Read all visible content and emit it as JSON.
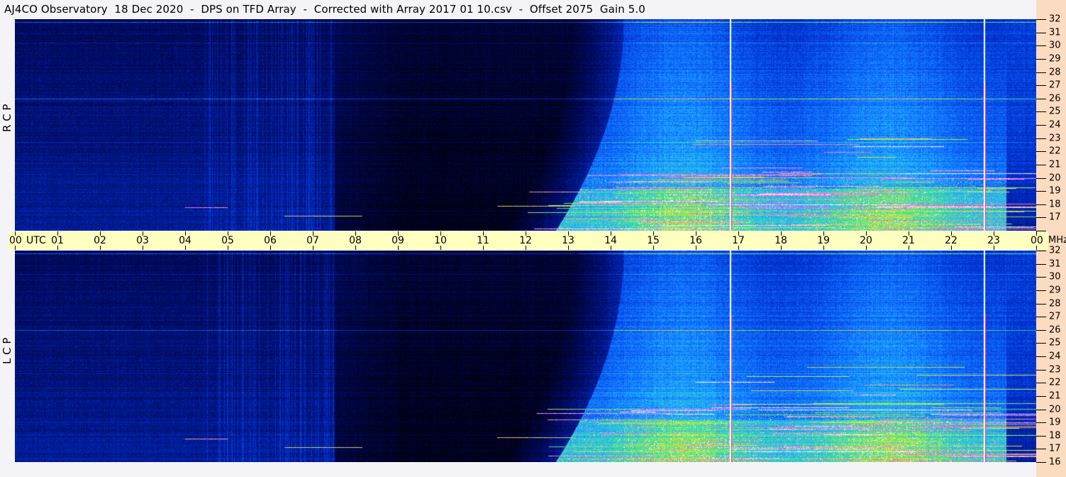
{
  "title": "AJ4CO Observatory  18 Dec 2020  -  DPS on TFD Array  -  Corrected with Array 2017 01 10.csv  -  Offset 2075  Gain 5.0",
  "colors": {
    "background": "#f4f4f8",
    "time_bar": "#ffffc0",
    "freq_strip": "#fcdcc0",
    "marker_line": "#ffffff",
    "marker_line_edge": "#ff2090"
  },
  "chart_data": {
    "type": "heatmap",
    "title": "AJ4CO Observatory  18 Dec 2020  -  DPS on TFD Array  -  Corrected with Array 2017 01 10.csv  -  Offset 2075  Gain 5.0",
    "xlabel": "UTC",
    "ylabel": "MHz",
    "xlim": [
      0,
      24
    ],
    "ylim": [
      16,
      32
    ],
    "x_ticks": [
      "00",
      "01",
      "02",
      "03",
      "04",
      "05",
      "06",
      "07",
      "08",
      "09",
      "10",
      "11",
      "12",
      "13",
      "14",
      "15",
      "16",
      "17",
      "18",
      "19",
      "20",
      "21",
      "22",
      "23",
      "00"
    ],
    "y_ticks": [
      "32",
      "31",
      "30",
      "29",
      "28",
      "27",
      "26",
      "25",
      "24",
      "23",
      "22",
      "21",
      "20",
      "19",
      "18",
      "17",
      "16"
    ],
    "panels": [
      {
        "name": "R C P"
      },
      {
        "name": "L C P"
      }
    ],
    "colormap": [
      "#000010",
      "#000a60",
      "#0030d0",
      "#1070ff",
      "#20b0ff",
      "#40e0a0",
      "#e0f020",
      "#ff40ff",
      "#ffffff"
    ],
    "vertical_markers_utc": [
      16.82,
      22.78
    ],
    "grid": false,
    "legend": "none"
  }
}
